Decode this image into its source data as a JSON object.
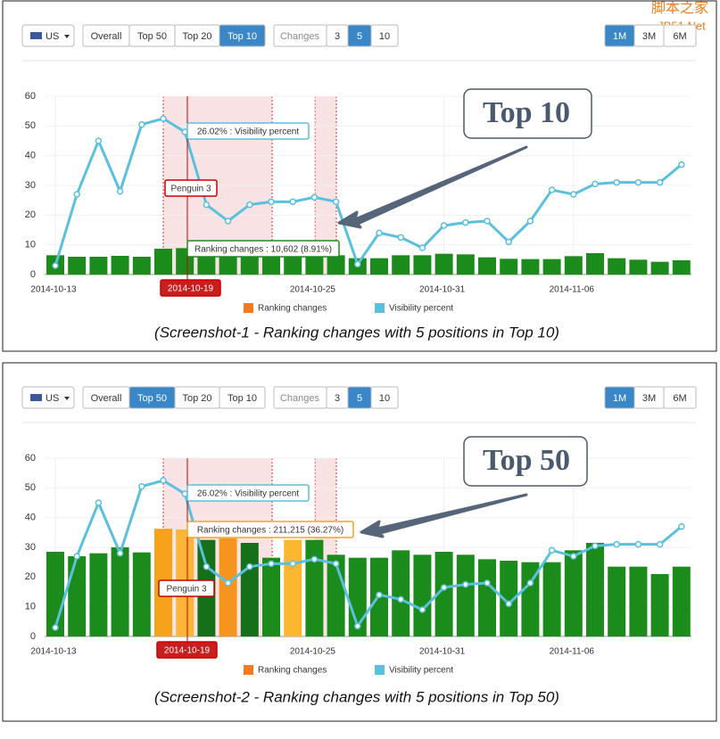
{
  "watermark": {
    "title": "脚本之家",
    "url": "JB51.Net"
  },
  "chart_data": [
    {
      "type": "combo",
      "controls": {
        "country": "US",
        "scope": [
          {
            "label": "Overall"
          },
          {
            "label": "Top 50"
          },
          {
            "label": "Top 20"
          },
          {
            "label": "Top 10",
            "active": true
          }
        ],
        "changes_label": "Changes",
        "changes": [
          {
            "label": "3"
          },
          {
            "label": "5",
            "active": true
          },
          {
            "label": "10"
          }
        ],
        "period": [
          {
            "label": "1M",
            "active": true
          },
          {
            "label": "3M"
          },
          {
            "label": "6M"
          }
        ]
      },
      "x": [
        "2014-10-13",
        "2014-10-14",
        "2014-10-15",
        "2014-10-16",
        "2014-10-17",
        "2014-10-18",
        "2014-10-19",
        "2014-10-20",
        "2014-10-21",
        "2014-10-22",
        "2014-10-23",
        "2014-10-24",
        "2014-10-25",
        "2014-10-26",
        "2014-10-27",
        "2014-10-28",
        "2014-10-29",
        "2014-10-30",
        "2014-10-31",
        "2014-11-01",
        "2014-11-02",
        "2014-11-03",
        "2014-11-04",
        "2014-11-05",
        "2014-11-06",
        "2014-11-07",
        "2014-11-08",
        "2014-11-09",
        "2014-11-10",
        "2014-11-11"
      ],
      "xticks": [
        "2014-10-13",
        "2014-10-19",
        "2014-10-25",
        "2014-10-31",
        "2014-11-06"
      ],
      "ylim": [
        0,
        60
      ],
      "yticks": [
        0,
        10,
        20,
        30,
        40,
        50,
        60
      ],
      "grid": true,
      "series": [
        {
          "name": "Ranking changes",
          "color": "#f47a20",
          "bar_color": "#1b8c1b",
          "values": [
            6.5,
            6,
            6,
            6.3,
            6,
            8.7,
            8.9,
            7,
            7,
            6.5,
            6,
            6.5,
            6,
            6.5,
            5.5,
            5.5,
            6.5,
            6.5,
            7,
            6.8,
            5.8,
            5.3,
            5.2,
            5.2,
            6.2,
            7.2,
            5.5,
            5,
            4.3,
            4.8
          ]
        },
        {
          "name": "Visibility percent",
          "color": "#5bc0de",
          "values": [
            3,
            27,
            45,
            28,
            50.5,
            52.5,
            48,
            23.5,
            18,
            23.5,
            24.5,
            24.5,
            26,
            24.5,
            3.5,
            14,
            12.5,
            9,
            16.5,
            17.5,
            18,
            11,
            18,
            28.5,
            27,
            30.5,
            31,
            31,
            31,
            37
          ]
        }
      ],
      "annotations": {
        "visibility_tooltip": "26.02% : Visibility percent",
        "ranking_tooltip": "Ranking changes : 10,602 (8.91%)",
        "event": "Penguin 3",
        "event_date": "2014-10-19",
        "callout": "Top 10"
      },
      "caption": "(Screenshot-1 - Ranking changes with 5 positions in Top 10)"
    },
    {
      "type": "combo",
      "controls": {
        "country": "US",
        "scope": [
          {
            "label": "Overall"
          },
          {
            "label": "Top 50",
            "active": true
          },
          {
            "label": "Top 20"
          },
          {
            "label": "Top 10"
          }
        ],
        "changes_label": "Changes",
        "changes": [
          {
            "label": "3"
          },
          {
            "label": "5",
            "active": true
          },
          {
            "label": "10"
          }
        ],
        "period": [
          {
            "label": "1M",
            "active": true
          },
          {
            "label": "3M"
          },
          {
            "label": "6M"
          }
        ]
      },
      "x": [
        "2014-10-13",
        "2014-10-14",
        "2014-10-15",
        "2014-10-16",
        "2014-10-17",
        "2014-10-18",
        "2014-10-19",
        "2014-10-20",
        "2014-10-21",
        "2014-10-22",
        "2014-10-23",
        "2014-10-24",
        "2014-10-25",
        "2014-10-26",
        "2014-10-27",
        "2014-10-28",
        "2014-10-29",
        "2014-10-30",
        "2014-10-31",
        "2014-11-01",
        "2014-11-02",
        "2014-11-03",
        "2014-11-04",
        "2014-11-05",
        "2014-11-06",
        "2014-11-07",
        "2014-11-08",
        "2014-11-09",
        "2014-11-10",
        "2014-11-11"
      ],
      "xticks": [
        "2014-10-13",
        "2014-10-19",
        "2014-10-25",
        "2014-10-31",
        "2014-11-06"
      ],
      "ylim": [
        0,
        60
      ],
      "yticks": [
        0,
        10,
        20,
        30,
        40,
        50,
        60
      ],
      "grid": true,
      "series": [
        {
          "name": "Ranking changes",
          "color": "#f47a20",
          "bar_colors": [
            "#1b8c1b",
            "#1b8c1b",
            "#1b8c1b",
            "#1b8c1b",
            "#1b8c1b",
            "#f7a21b",
            "#fbb63a",
            "#16701a",
            "#f7941d",
            "#16701a",
            "#1b8c1b",
            "#fbb72f",
            "#1b8c1b",
            "#1b8c1b",
            "#1b8c1b",
            "#1b8c1b",
            "#1b8c1b",
            "#1b8c1b",
            "#1b8c1b",
            "#1b8c1b",
            "#1b8c1b",
            "#1b8c1b",
            "#1b8c1b",
            "#1b8c1b",
            "#1b8c1b",
            "#1b8c1b",
            "#1b8c1b",
            "#1b8c1b",
            "#1b8c1b",
            "#1b8c1b"
          ],
          "values": [
            28.5,
            27,
            28,
            30,
            28.3,
            36.27,
            36,
            32.5,
            33,
            31.5,
            26.5,
            32.5,
            32.5,
            27.5,
            26.5,
            26.5,
            29,
            27.5,
            28.5,
            27.5,
            26,
            25.5,
            25,
            25,
            29,
            31.5,
            23.5,
            23.5,
            21,
            23.5
          ]
        },
        {
          "name": "Visibility percent",
          "color": "#5bc0de",
          "values": [
            3,
            27,
            45,
            28,
            50.5,
            52.5,
            48,
            23.5,
            18,
            23.5,
            24.5,
            24.5,
            26,
            24.5,
            3.5,
            14,
            12.5,
            9,
            16.5,
            17.5,
            18,
            11,
            18,
            29,
            27,
            30.5,
            31,
            31,
            31,
            37
          ]
        }
      ],
      "annotations": {
        "visibility_tooltip": "26.02% : Visibility percent",
        "ranking_tooltip": "Ranking changes : 211,215 (36.27%)",
        "event": "Penguin 3",
        "event_date": "2014-10-19",
        "callout": "Top 50"
      },
      "caption": "(Screenshot-2 - Ranking changes with 5 positions in Top 50)"
    }
  ]
}
